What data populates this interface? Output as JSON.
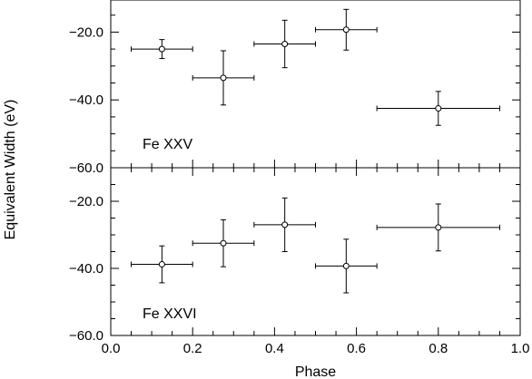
{
  "chart_data": {
    "type": "scatter",
    "xlabel": "Phase",
    "ylabel": "Equivalent Width (eV)",
    "xlim": [
      0.0,
      1.0
    ],
    "ylim": [
      -60.0,
      -10.0
    ],
    "xticks": [
      "0.0",
      "0.2",
      "0.4",
      "0.6",
      "0.8",
      "1.0"
    ],
    "yticks": [
      "−20.0",
      "−40.0",
      "−60.0"
    ],
    "grid": false,
    "panels": [
      {
        "label": "Fe XXV",
        "points": [
          {
            "x": 0.125,
            "xerr": 0.075,
            "y": -25.0,
            "yerr": 2.8
          },
          {
            "x": 0.275,
            "xerr": 0.075,
            "y": -33.5,
            "yerr": 8.0
          },
          {
            "x": 0.425,
            "xerr": 0.075,
            "y": -23.5,
            "yerr": 7.0
          },
          {
            "x": 0.575,
            "xerr": 0.075,
            "y": -19.3,
            "yerr": 6.0
          },
          {
            "x": 0.8,
            "xerr": 0.15,
            "y": -42.5,
            "yerr": 5.0
          }
        ]
      },
      {
        "label": "Fe XXVI",
        "points": [
          {
            "x": 0.125,
            "xerr": 0.075,
            "y": -38.8,
            "yerr": 5.5
          },
          {
            "x": 0.275,
            "xerr": 0.075,
            "y": -32.5,
            "yerr": 7.0
          },
          {
            "x": 0.425,
            "xerr": 0.075,
            "y": -27.0,
            "yerr": 8.0
          },
          {
            "x": 0.575,
            "xerr": 0.075,
            "y": -39.3,
            "yerr": 8.0
          },
          {
            "x": 0.8,
            "xerr": 0.15,
            "y": -27.8,
            "yerr": 7.0
          }
        ]
      }
    ]
  }
}
